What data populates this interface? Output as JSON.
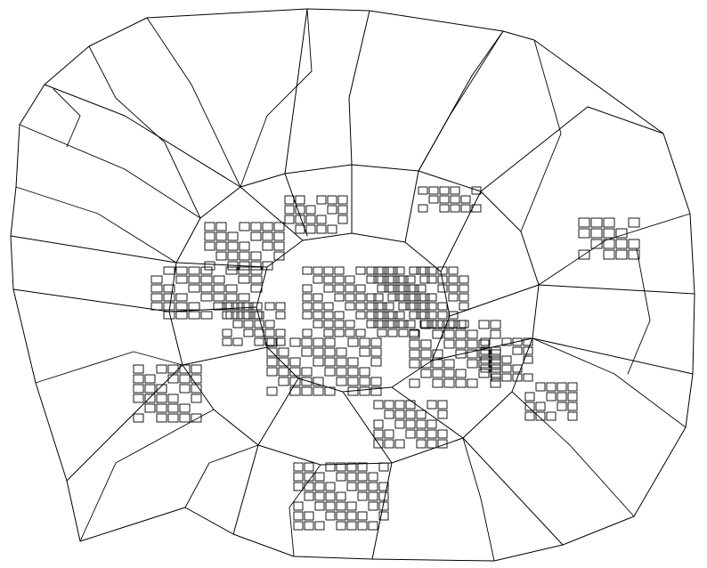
{
  "map": {
    "style": "black street-network line drawing on white background",
    "background_color": "#ffffff",
    "line_color": "#000000"
  }
}
